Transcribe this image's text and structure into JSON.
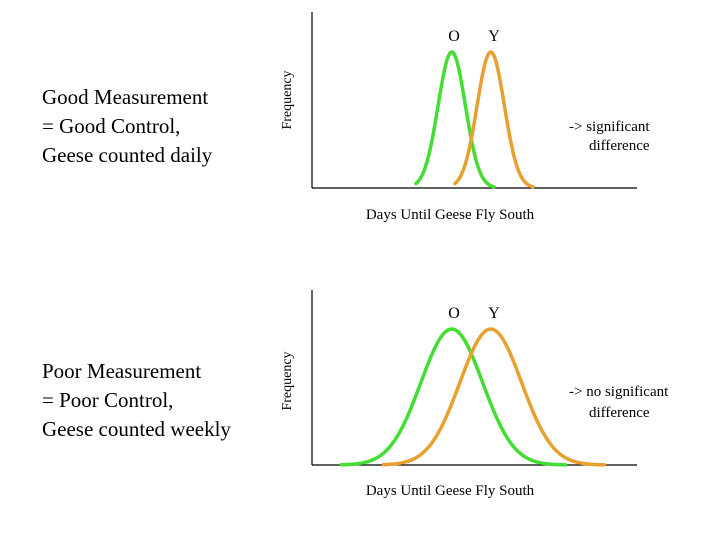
{
  "panels": [
    {
      "caption": [
        "Good Measurement",
        "= Good Control,",
        "Geese counted daily"
      ],
      "note": [
        "-> significant",
        "difference"
      ]
    },
    {
      "caption": [
        "Poor Measurement",
        "= Poor Control,",
        "Geese counted weekly"
      ],
      "note": [
        "-> no significant",
        "difference"
      ]
    }
  ],
  "chart_data": [
    {
      "type": "line",
      "xlabel": "Days Until Geese Fly South",
      "ylabel": "Frequency",
      "xlim": [
        0,
        100
      ],
      "ylim": [
        0,
        1
      ],
      "series": [
        {
          "name": "O",
          "color": "#44dd33",
          "mean": 43,
          "sd": 4.2,
          "x_from": 32,
          "x_to": 56,
          "peak": 1.0
        },
        {
          "name": "Y",
          "color": "#e8a030",
          "mean": 55,
          "sd": 4.2,
          "x_from": 44,
          "x_to": 68,
          "peak": 1.0
        }
      ]
    },
    {
      "type": "line",
      "xlabel": "Days Until Geese Fly South",
      "ylabel": "Frequency",
      "xlim": [
        0,
        100
      ],
      "ylim": [
        0,
        1
      ],
      "series": [
        {
          "name": "O",
          "color": "#44dd33",
          "mean": 43,
          "sd": 9.5,
          "x_from": 9,
          "x_to": 78,
          "peak": 1.0
        },
        {
          "name": "Y",
          "color": "#e8a030",
          "mean": 55,
          "sd": 9.5,
          "x_from": 22,
          "x_to": 90,
          "peak": 1.0
        }
      ]
    }
  ]
}
